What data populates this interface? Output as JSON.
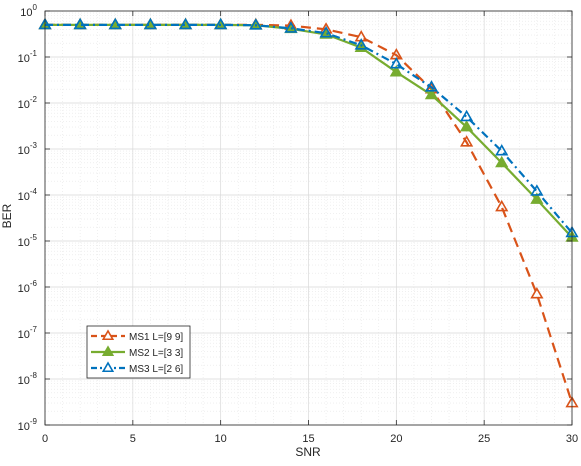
{
  "chart_data": {
    "type": "line",
    "xlabel": "SNR",
    "ylabel": "BER",
    "xlim": [
      0,
      30
    ],
    "ylim": [
      1e-09,
      1
    ],
    "yscale": "log",
    "grid": true,
    "minor_grid": true,
    "legend_position": "bottom-left",
    "x_ticks": [
      0,
      5,
      10,
      15,
      20,
      25,
      30
    ],
    "y_ticks": [
      {
        "value": 1,
        "base": "10",
        "exp": "0"
      },
      {
        "value": 0.1,
        "base": "10",
        "exp": "-1"
      },
      {
        "value": 0.01,
        "base": "10",
        "exp": "-2"
      },
      {
        "value": 0.001,
        "base": "10",
        "exp": "-3"
      },
      {
        "value": 0.0001,
        "base": "10",
        "exp": "-4"
      },
      {
        "value": 1e-05,
        "base": "10",
        "exp": "-5"
      },
      {
        "value": 1e-06,
        "base": "10",
        "exp": "-6"
      },
      {
        "value": 1e-07,
        "base": "10",
        "exp": "-7"
      },
      {
        "value": 1e-08,
        "base": "10",
        "exp": "-8"
      },
      {
        "value": 1e-09,
        "base": "10",
        "exp": "-9"
      }
    ],
    "series": [
      {
        "name": "MS1 L=[9 9]",
        "color": "#D95319",
        "line_style": "dashed",
        "marker": "open-triangle",
        "x": [
          0,
          2,
          4,
          6,
          8,
          10,
          12,
          14,
          16,
          18,
          20,
          22,
          24,
          26,
          28,
          30
        ],
        "y": [
          0.5,
          0.5,
          0.5,
          0.5,
          0.5,
          0.5,
          0.5,
          0.48,
          0.4,
          0.27,
          0.11,
          0.02,
          0.0014,
          5.5e-05,
          7e-07,
          3e-09
        ]
      },
      {
        "name": "MS2 L=[3 3]",
        "color": "#77AC30",
        "line_style": "solid",
        "marker": "filled-triangle",
        "x": [
          0,
          2,
          4,
          6,
          8,
          10,
          12,
          14,
          16,
          18,
          20,
          22,
          24,
          26,
          28,
          30
        ],
        "y": [
          0.5,
          0.5,
          0.5,
          0.5,
          0.5,
          0.5,
          0.49,
          0.41,
          0.31,
          0.16,
          0.047,
          0.015,
          0.003,
          0.0005,
          8e-05,
          1.2e-05
        ]
      },
      {
        "name": "MS3 L=[2 6]",
        "color": "#0072BD",
        "line_style": "dash-dot",
        "marker": "open-triangle",
        "x": [
          0,
          2,
          4,
          6,
          8,
          10,
          12,
          14,
          16,
          18,
          20,
          22,
          24,
          26,
          28,
          30
        ],
        "y": [
          0.5,
          0.5,
          0.5,
          0.5,
          0.5,
          0.5,
          0.49,
          0.42,
          0.33,
          0.18,
          0.07,
          0.022,
          0.005,
          0.0009,
          0.00012,
          1.5e-05
        ]
      }
    ]
  }
}
